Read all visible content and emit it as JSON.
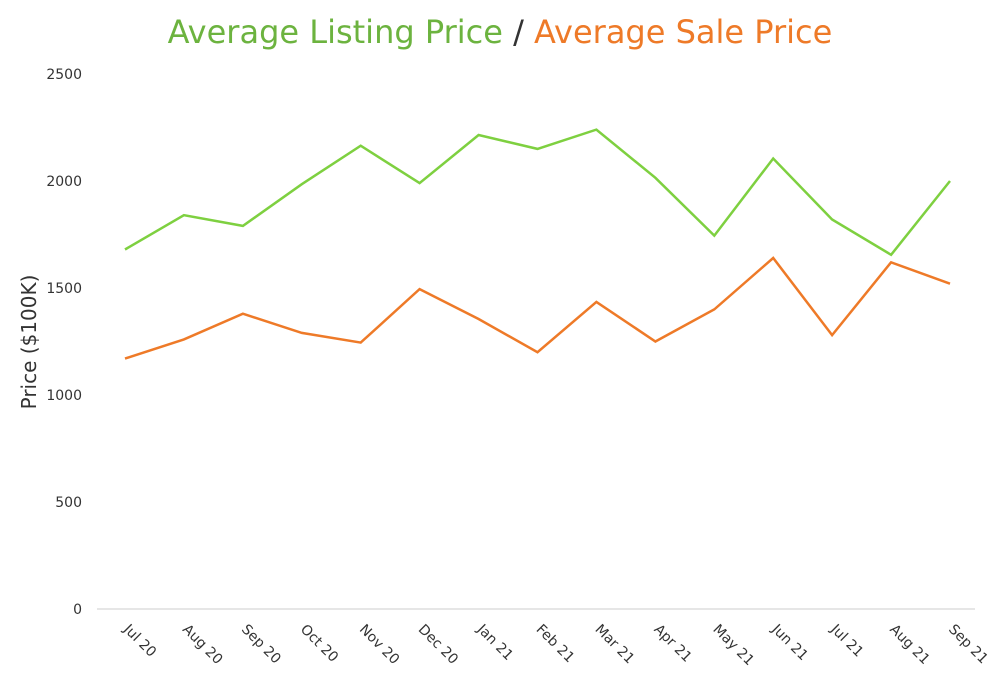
{
  "chart_data": {
    "type": "line",
    "title_part1": "Average Listing Price",
    "title_sep": " / ",
    "title_part2": "Average Sale Price",
    "xlabel": "",
    "ylabel": "Price ($100K)",
    "ylim": [
      0,
      2500
    ],
    "yticks": [
      "0",
      "500",
      "1000",
      "1500",
      "2000",
      "2500"
    ],
    "grid": false,
    "categories": [
      "Jul 20",
      "Aug 20",
      "Sep 20",
      "Oct 20",
      "Nov 20",
      "Dec 20",
      "Jan 21",
      "Feb 21",
      "Mar 21",
      "Apr 21",
      "May 21",
      "Jun 21",
      "Jul 21",
      "Aug 21",
      "Sep 21"
    ],
    "series": [
      {
        "color": "#7ED040",
        "values": [
          1680,
          1840,
          1790,
          1985,
          2165,
          1990,
          2215,
          2150,
          2240,
          2015,
          1745,
          2105,
          1820,
          1655,
          2000
        ]
      },
      {
        "color": "#EE7A28",
        "values": [
          1170,
          1260,
          1380,
          1290,
          1245,
          1495,
          1355,
          1200,
          1435,
          1250,
          1400,
          1640,
          1280,
          1620,
          1520
        ]
      }
    ]
  },
  "colors": {
    "title_part1": "#6CB33F",
    "title_part2": "#EE7A28",
    "axis": "#cccccc",
    "text": "#333333"
  }
}
